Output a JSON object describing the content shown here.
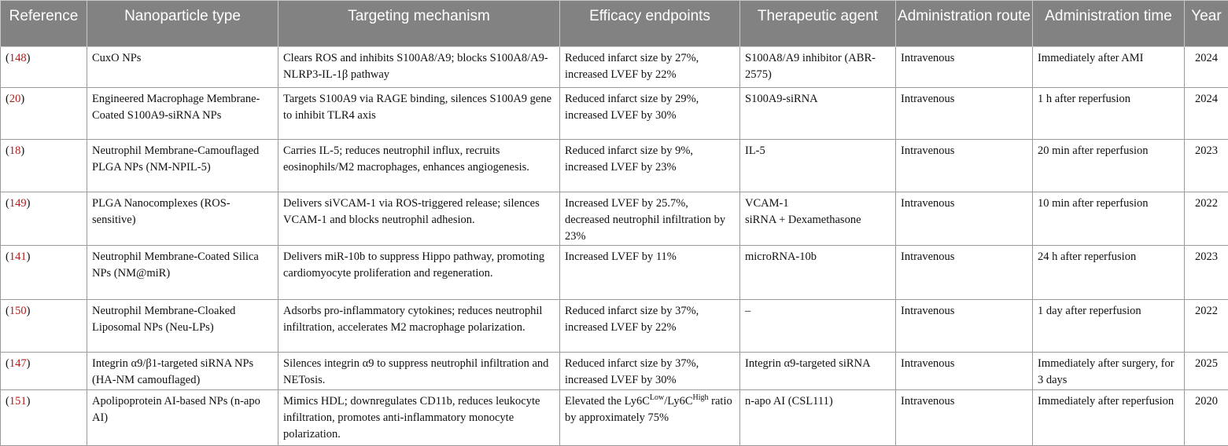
{
  "table": {
    "header": [
      "Reference",
      "Nanoparticle type",
      "Targeting mechanism",
      "Efficacy endpoints",
      "Therapeutic agent",
      "Administration route",
      "Administration time",
      "Year"
    ],
    "rows": [
      [
        [
          "(",
          "148",
          ")"
        ],
        "CuxO NPs",
        "Clears ROS and inhibits S100A8/A9; blocks S100A8/A9-NLRP3-IL-1β pathway",
        "Reduced infarct size by 27%, increased LVEF by 22%",
        "S100A8/A9 inhibitor (ABR-2575)",
        "Intravenous",
        "Immediately after AMI",
        "2024"
      ],
      [
        [
          "(",
          "20",
          ")"
        ],
        "Engineered Macrophage Membrane-Coated S100A9-siRNA NPs",
        "Targets S100A9 via RAGE binding, silences S100A9 gene to inhibit TLR4 axis",
        "Reduced infarct size by 29%, increased LVEF by 30%",
        "S100A9-siRNA",
        "Intravenous",
        "1 h after reperfusion",
        "2024"
      ],
      [
        [
          "(",
          "18",
          ")"
        ],
        "Neutrophil Membrane-Camouflaged PLGA NPs (NM-NPIL-5)",
        "Carries IL-5; reduces neutrophil influx, recruits eosinophils/M2 macrophages, enhances angiogenesis.",
        "Reduced infarct size by 9%, increased LVEF by 23%",
        "IL-5",
        "Intravenous",
        "20 min after reperfusion",
        "2023"
      ],
      [
        [
          "(",
          "149",
          ")"
        ],
        "PLGA Nanocomplexes (ROS-sensitive)",
        "Delivers siVCAM-1 via ROS-triggered release; silences VCAM-1 and blocks neutrophil adhesion.",
        "Increased LVEF by 25.7%, decreased neutrophil infiltration by 23%",
        "VCAM-1\nsiRNA + Dexamethasone",
        "Intravenous",
        "10 min after reperfusion",
        "2022"
      ],
      [
        [
          "(",
          "141",
          ")"
        ],
        "Neutrophil Membrane-Coated Silica NPs (NM@miR)",
        "Delivers miR-10b to suppress Hippo pathway, promoting cardiomyocyte proliferation and regeneration.",
        "Increased LVEF by 11%",
        "microRNA-10b",
        "Intravenous",
        "24 h after reperfusion",
        "2023"
      ],
      [
        [
          "(",
          "150",
          ")"
        ],
        "Neutrophil Membrane-Cloaked Liposomal NPs (Neu-LPs)",
        "Adsorbs pro-inflammatory cytokines; reduces neutrophil infiltration, accelerates M2 macrophage polarization.",
        "Reduced infarct size by 37%, increased LVEF by 22%",
        "–",
        "Intravenous",
        "1 day after reperfusion",
        "2022"
      ],
      [
        [
          "(",
          "147",
          ")"
        ],
        "Integrin α9/β1-targeted siRNA NPs (HA-NM camouflaged)",
        "Silences integrin α9 to suppress neutrophil infiltration and NETosis.",
        "Reduced infarct size by 37%, increased LVEF by 30%",
        "Integrin α9-targeted siRNA",
        "Intravenous",
        "Immediately after surgery, for 3 days",
        "2025"
      ],
      [
        [
          "(",
          "151",
          ")"
        ],
        "Apolipoprotein AI-based NPs (n-apo AI)",
        "Mimics HDL; downregulates CD11b, reduces leukocyte infiltration, promotes anti-inflammatory monocyte polarization.",
        [
          {
            "text": "Elevated the Ly6C"
          },
          {
            "text": "Low",
            "sup": true
          },
          {
            "text": "/Ly6C"
          },
          {
            "text": "High",
            "sup": true
          },
          {
            "text": " ratio by approximately 75%"
          }
        ],
        "n-apo AI (CSL111)",
        "Intravenous",
        "Immediately after reperfusion",
        "2020"
      ]
    ]
  }
}
